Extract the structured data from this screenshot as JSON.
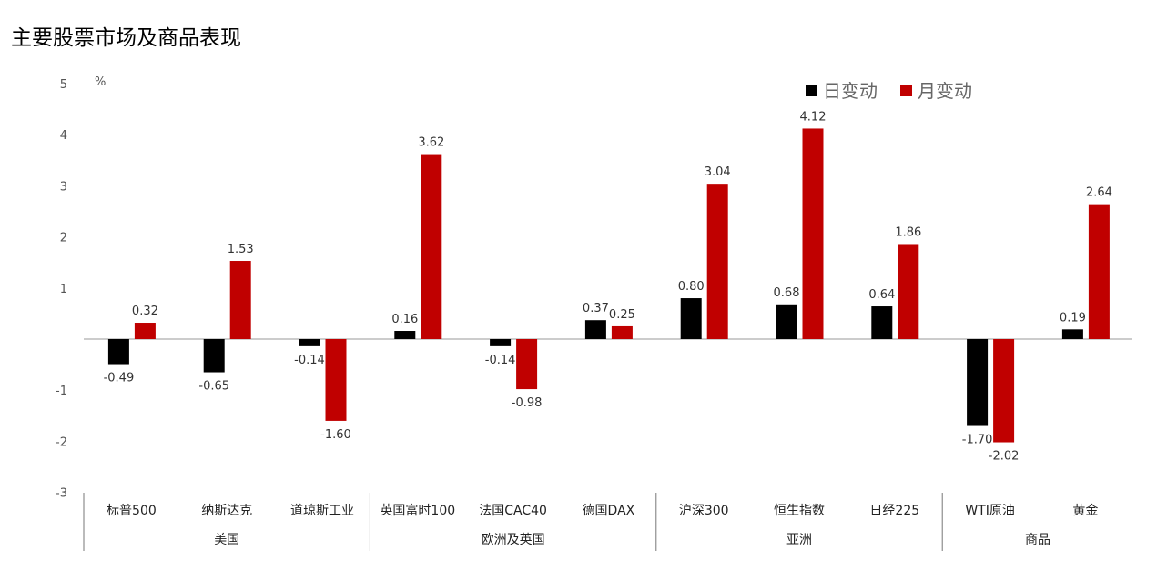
{
  "chart_data": {
    "type": "bar",
    "title": "主要股票市场及商品表现",
    "ylabel": "%",
    "ylim": [
      -3,
      5
    ],
    "yticks": [
      5,
      4,
      3,
      2,
      1,
      -1,
      -2,
      -3
    ],
    "legend_position": "top-right",
    "categories": [
      "标普500",
      "纳斯达克",
      "道琼斯工业",
      "英国富时100",
      "法国CAC40",
      "德国DAX",
      "沪深300",
      "恒生指数",
      "日经225",
      "WTI原油",
      "黄金"
    ],
    "groups": [
      {
        "name": "美国",
        "categories": [
          "标普500",
          "纳斯达克",
          "道琼斯工业"
        ]
      },
      {
        "name": "欧洲及英国",
        "categories": [
          "英国富时100",
          "法国CAC40",
          "德国DAX"
        ]
      },
      {
        "name": "亚洲",
        "categories": [
          "沪深300",
          "恒生指数",
          "日经225"
        ]
      },
      {
        "name": "商品",
        "categories": [
          "WTI原油",
          "黄金"
        ]
      }
    ],
    "series": [
      {
        "name": "日变动",
        "color": "#000000",
        "values": [
          -0.49,
          -0.65,
          -0.14,
          0.16,
          -0.14,
          0.37,
          0.8,
          0.68,
          0.64,
          -1.7,
          0.19
        ]
      },
      {
        "name": "月变动",
        "color": "#c00000",
        "values": [
          0.32,
          1.53,
          -1.6,
          3.62,
          -0.98,
          0.25,
          3.04,
          4.12,
          1.86,
          -2.02,
          2.64
        ]
      }
    ]
  }
}
